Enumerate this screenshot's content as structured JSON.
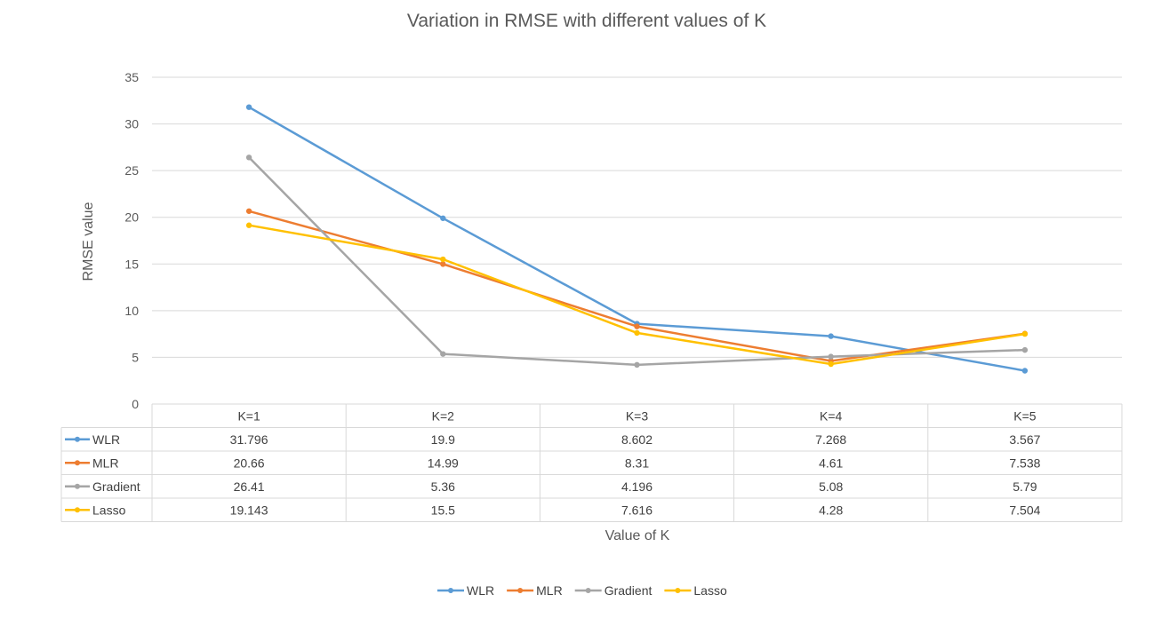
{
  "chart_data": {
    "type": "line",
    "title": "Variation in RMSE with different values of K",
    "xlabel": "Value of K",
    "ylabel": "RMSE value",
    "categories": [
      "K=1",
      "K=2",
      "K=3",
      "K=4",
      "K=5"
    ],
    "ylim": [
      0,
      35
    ],
    "yticks": [
      "0",
      "5",
      "10",
      "15",
      "20",
      "25",
      "30",
      "35"
    ],
    "grid": true,
    "legend_position": "bottom",
    "data_table": true,
    "series": [
      {
        "name": "WLR",
        "color": "#5B9BD5",
        "values": [
          31.796,
          19.9,
          8.602,
          7.268,
          3.567
        ],
        "labels": [
          "31.796",
          "19.9",
          "8.602",
          "7.268",
          "3.567"
        ]
      },
      {
        "name": "MLR",
        "color": "#ED7D31",
        "values": [
          20.66,
          14.99,
          8.31,
          4.61,
          7.538
        ],
        "labels": [
          "20.66",
          "14.99",
          "8.31",
          "4.61",
          "7.538"
        ]
      },
      {
        "name": "Gradient",
        "color": "#A5A5A5",
        "values": [
          26.41,
          5.36,
          4.196,
          5.08,
          5.79
        ],
        "labels": [
          "26.41",
          "5.36",
          "4.196",
          "5.08",
          "5.79"
        ]
      },
      {
        "name": "Lasso",
        "color": "#FFC000",
        "values": [
          19.143,
          15.5,
          7.616,
          4.28,
          7.504
        ],
        "labels": [
          "19.143",
          "15.5",
          "7.616",
          "4.28",
          "7.504"
        ]
      }
    ]
  }
}
